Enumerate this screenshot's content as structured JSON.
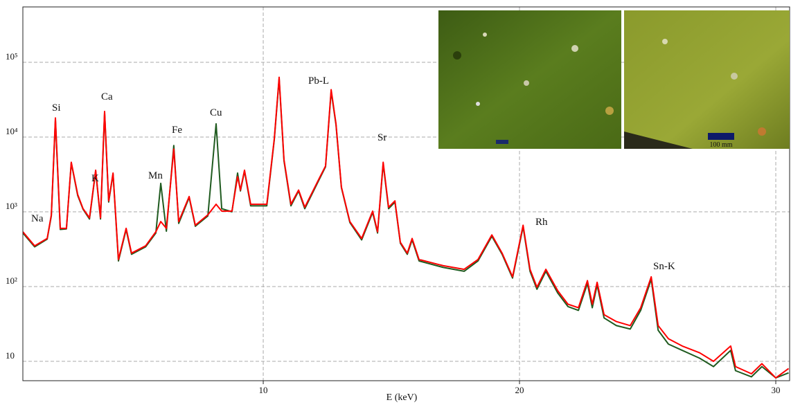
{
  "chart_data": {
    "type": "line",
    "x_label": "E (keV)",
    "log_y": true,
    "grid": true,
    "xlim": [
      0.62,
      30.54
    ],
    "ylim": [
      5.5,
      550000
    ],
    "xticks": [
      10,
      20,
      30
    ],
    "yticks": [
      10,
      {
        "value": 100,
        "label": "10²"
      },
      {
        "value": 1000,
        "label": "10³"
      },
      {
        "value": 10000,
        "label": "10⁴"
      },
      {
        "value": 100000,
        "label": "10⁵"
      }
    ],
    "x": [
      0.62,
      1.08,
      1.57,
      1.73,
      1.89,
      2.08,
      2.32,
      2.51,
      2.76,
      2.97,
      3.22,
      3.46,
      3.65,
      3.81,
      3.97,
      4.14,
      4.35,
      4.65,
      4.86,
      5.41,
      5.81,
      6.0,
      6.22,
      6.51,
      6.7,
      7.11,
      7.35,
      7.84,
      8.16,
      8.38,
      8.78,
      9.0,
      9.11,
      9.27,
      9.51,
      10.14,
      10.43,
      10.62,
      10.81,
      11.08,
      11.38,
      11.62,
      12.16,
      12.43,
      12.65,
      12.84,
      13.05,
      13.38,
      13.84,
      14.27,
      14.46,
      14.68,
      14.89,
      15.14,
      15.35,
      15.62,
      15.81,
      16.08,
      17.03,
      17.84,
      18.38,
      18.92,
      19.32,
      19.73,
      20.14,
      20.41,
      20.68,
      21.03,
      21.49,
      21.89,
      22.3,
      22.65,
      22.84,
      23.03,
      23.3,
      23.78,
      24.32,
      24.73,
      25.14,
      25.41,
      25.81,
      26.35,
      27.03,
      27.57,
      28.24,
      28.43,
      29.05,
      29.46,
      30.0,
      30.5
    ],
    "series": [
      {
        "color": "#1f5a1f",
        "values": [
          520,
          340,
          430,
          880,
          17000,
          580,
          590,
          4500,
          1650,
          1080,
          800,
          3500,
          800,
          21000,
          1350,
          3200,
          220,
          580,
          270,
          340,
          520,
          2400,
          550,
          7700,
          700,
          1550,
          640,
          880,
          15000,
          1100,
          1000,
          3300,
          1900,
          3500,
          1200,
          1200,
          9200,
          60000,
          4800,
          1200,
          1900,
          1100,
          2600,
          4000,
          41000,
          14500,
          2100,
          720,
          420,
          980,
          520,
          4400,
          1100,
          1350,
          380,
          270,
          420,
          220,
          180,
          160,
          220,
          470,
          270,
          130,
          630,
          160,
          92,
          160,
          82,
          54,
          48,
          110,
          52,
          105,
          38,
          30,
          27,
          48,
          125,
          26,
          17,
          14,
          11,
          8.5,
          14,
          7.5,
          6.2,
          8.5,
          6,
          7
        ]
      },
      {
        "color": "#ff0000",
        "values": [
          540,
          350,
          440,
          910,
          18000,
          600,
          600,
          4600,
          1700,
          1100,
          830,
          3600,
          830,
          22000,
          1400,
          3300,
          230,
          600,
          280,
          350,
          540,
          740,
          600,
          6900,
          740,
          1600,
          660,
          910,
          1260,
          1020,
          1020,
          2950,
          1950,
          3600,
          1260,
          1260,
          9500,
          63000,
          5000,
          1260,
          1950,
          1150,
          2700,
          4100,
          43000,
          15000,
          2150,
          740,
          440,
          1020,
          540,
          4600,
          1150,
          1400,
          390,
          280,
          440,
          230,
          190,
          170,
          230,
          490,
          280,
          135,
          660,
          170,
          98,
          170,
          88,
          58,
          52,
          120,
          58,
          114,
          42,
          34,
          30,
          52,
          135,
          30,
          20,
          16,
          13,
          10,
          16,
          8.5,
          6.8,
          9.3,
          6,
          8
        ]
      }
    ],
    "annotations": [
      "Na",
      "Si",
      "K",
      "Ca",
      "Mn",
      "Fe",
      "Cu",
      "Pb-L",
      "Sr",
      "Rh",
      "Sn-K"
    ],
    "inset_scale_label": "100 mm"
  }
}
